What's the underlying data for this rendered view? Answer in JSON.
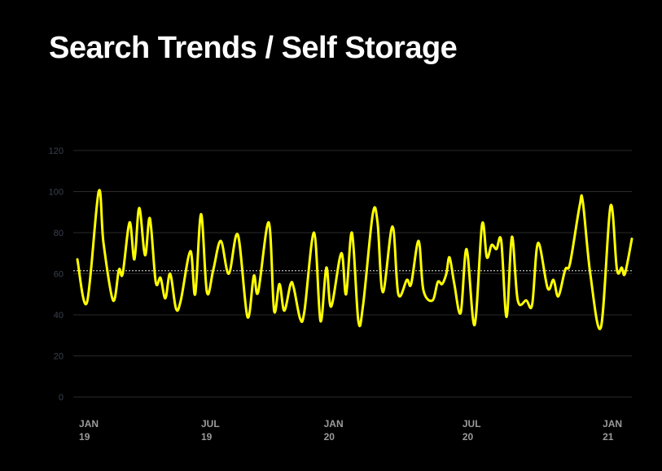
{
  "chart_data": {
    "type": "line",
    "title": "Search Trends / Self Storage",
    "xlabel": "",
    "ylabel": "",
    "ylim": [
      0,
      120
    ],
    "yticks": [
      0,
      20,
      40,
      60,
      80,
      100,
      120
    ],
    "xlim": [
      0,
      104
    ],
    "xunit": "weeks since start",
    "xticks": [
      {
        "x": 2.3,
        "line1": "JAN",
        "line2": "19"
      },
      {
        "x": 25.2,
        "line1": "JUL",
        "line2": "19"
      },
      {
        "x": 48.2,
        "line1": "JAN",
        "line2": "20"
      },
      {
        "x": 74.2,
        "line1": "JUL",
        "line2": "20"
      },
      {
        "x": 100.5,
        "line1": "JAN",
        "line2": "21"
      }
    ],
    "grid": true,
    "average": 61.5,
    "colors": {
      "line": "#ffff00",
      "grid": "#2a2a2a",
      "tick": "#3a4050",
      "xtick": "#9a9a9a",
      "average": "#bbbbbb"
    },
    "series": [
      {
        "name": "Self Storage",
        "x": [
          0,
          1.8,
          4.0,
          4.9,
          6.7,
          7.8,
          8.5,
          9.8,
          10.7,
          11.6,
          12.7,
          13.6,
          14.7,
          15.6,
          16.5,
          17.4,
          18.5,
          19.4,
          21.2,
          22.1,
          23.2,
          24.3,
          25.5,
          26.9,
          28.4,
          30.1,
          31.9,
          33.1,
          33.9,
          35.9,
          36.9,
          37.9,
          38.8,
          40.0,
          40.6,
          41.8,
          42.6,
          44.4,
          45.6,
          46.7,
          47.6,
          49.5,
          50.4,
          51.5,
          52.7,
          53.6,
          55.4,
          56.3,
          57.3,
          59.1,
          60.2,
          61.8,
          62.6,
          64.0,
          64.9,
          66.6,
          67.6,
          68.4,
          69.2,
          69.8,
          70.7,
          71.9,
          73.0,
          74.5,
          75.9,
          76.8,
          77.7,
          78.6,
          79.5,
          80.5,
          81.5,
          82.6,
          84.2,
          85.3,
          86.4,
          88.2,
          89.3,
          90.2,
          91.5,
          92.4,
          94.2,
          94.8,
          96.2,
          98.2,
          100.0,
          101.2,
          102.1,
          102.7,
          104.0
        ],
        "values": [
          67,
          46,
          100,
          75,
          47,
          62,
          60,
          85,
          67,
          92,
          69,
          87,
          56,
          58,
          48,
          60,
          43,
          47,
          71,
          50,
          89,
          51,
          62,
          76,
          60,
          79,
          39,
          59,
          51,
          85,
          42,
          55,
          42,
          55,
          53,
          38,
          42,
          80,
          37,
          63,
          44,
          70,
          50,
          80,
          37,
          45,
          89,
          85,
          51,
          83,
          50,
          57,
          55,
          76,
          52,
          47,
          56,
          55,
          60,
          68,
          55,
          41,
          72,
          35,
          84,
          68,
          74,
          72,
          76,
          39,
          78,
          47,
          47,
          45,
          75,
          53,
          57,
          49,
          62,
          65,
          93,
          95,
          60,
          34,
          93,
          62,
          63,
          60,
          77
        ]
      }
    ]
  }
}
